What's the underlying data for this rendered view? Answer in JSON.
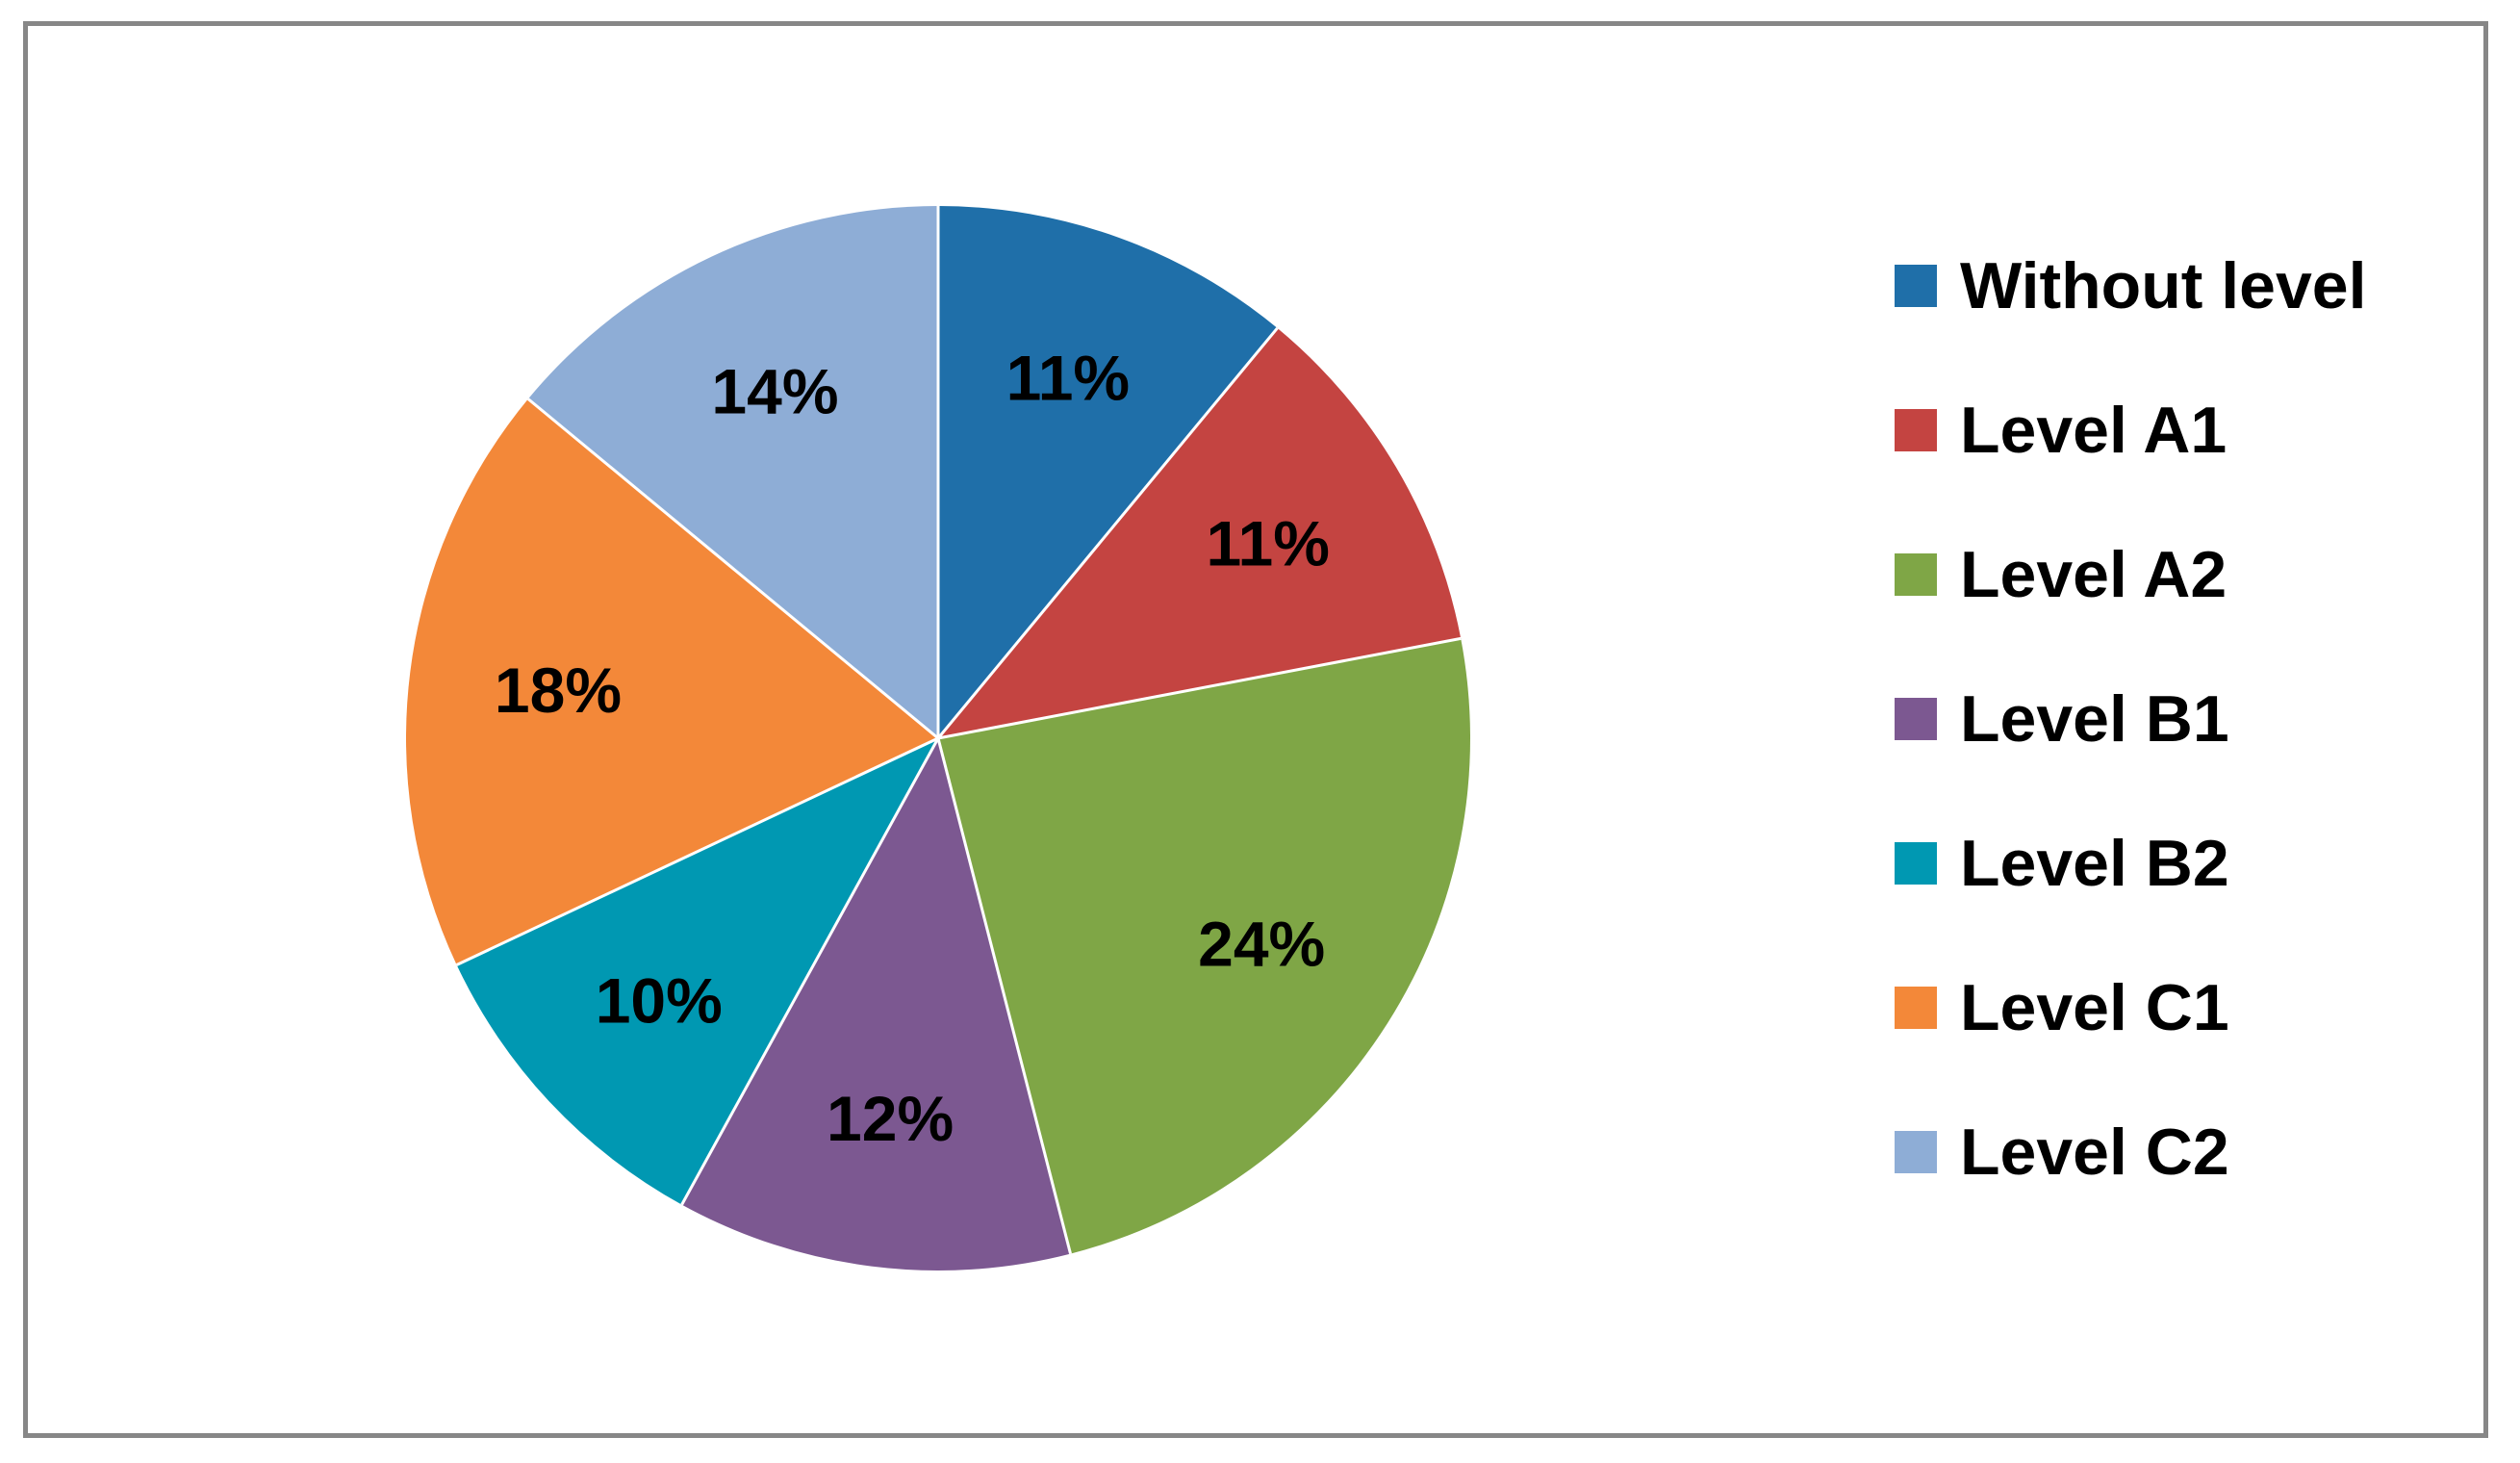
{
  "chart_data": {
    "type": "pie",
    "title": "",
    "categories": [
      "Without level",
      "Level A1",
      "Level A2",
      "Level B1",
      "Level B2",
      "Level C1",
      "Level C2"
    ],
    "values": [
      11,
      11,
      24,
      12,
      10,
      18,
      14
    ],
    "value_labels": [
      "11%",
      "11%",
      "24%",
      "12%",
      "10%",
      "18%",
      "14%"
    ],
    "colors": [
      "#1F6FA9",
      "#C44441",
      "#7FA646",
      "#7C5891",
      "#0098B2",
      "#F38839",
      "#8EADD6"
    ],
    "start_angle": "12 o'clock",
    "direction": "clockwise",
    "legend_position": "right"
  }
}
